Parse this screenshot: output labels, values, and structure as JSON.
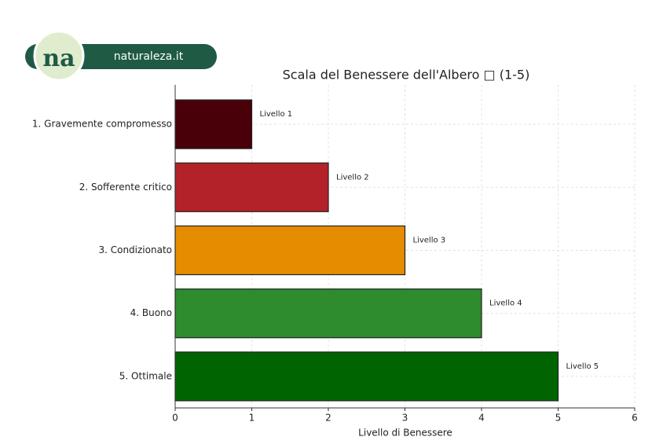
{
  "brand": {
    "mark": "na",
    "name": "naturaleza.it"
  },
  "chart_data": {
    "type": "barh",
    "title": "Scala del Benessere dell'Albero □ (1-5)",
    "categories": [
      "1. Gravemente compromesso",
      "2. Sofferente critico",
      "3. Condizionato",
      "4. Buono",
      "5. Ottimale"
    ],
    "values": [
      1,
      2,
      3,
      4,
      5
    ],
    "value_labels": [
      "Livello 1",
      "Livello 2",
      "Livello 3",
      "Livello 4",
      "Livello 5"
    ],
    "colors": [
      "#4a0008",
      "#b22228",
      "#e68c00",
      "#2e8b2e",
      "#006400"
    ],
    "xlabel": "Livello di Benessere",
    "xlim": [
      0,
      6
    ],
    "xticks": [
      0,
      1,
      2,
      3,
      4,
      5,
      6
    ],
    "grid": true
  }
}
